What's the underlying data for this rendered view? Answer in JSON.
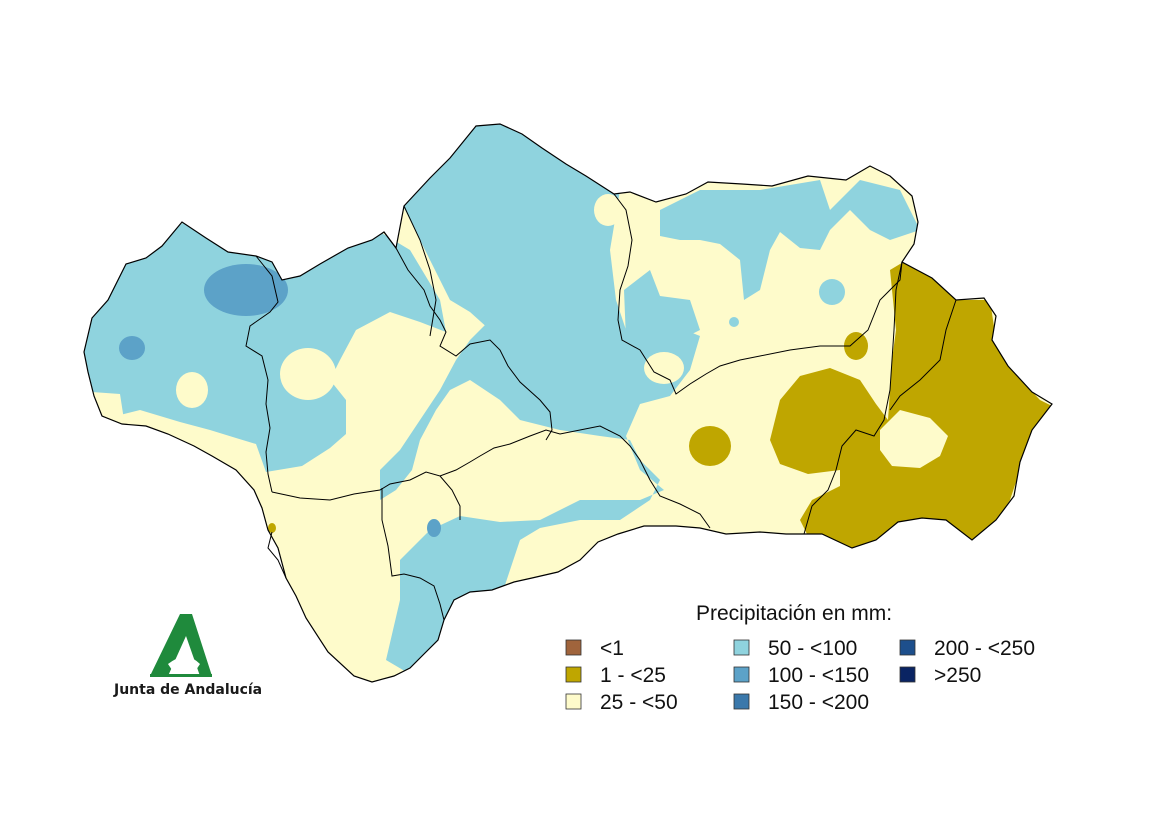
{
  "map": {
    "region": "Andalucía",
    "colors": {
      "background": "#ffffff",
      "border": "#000000"
    },
    "legend": {
      "title": "Precipitación en mm:",
      "items": [
        {
          "label": "<1",
          "color": "#a0643c"
        },
        {
          "label": "1 - <25",
          "color": "#bfa600"
        },
        {
          "label": "25 - <50",
          "color": "#fefbcb"
        },
        {
          "label": "50 - <100",
          "color": "#8fd3de"
        },
        {
          "label": "100 - <150",
          "color": "#5ca2c8"
        },
        {
          "label": "150 - <200",
          "color": "#3a78ab"
        },
        {
          "label": "200 - <250",
          "color": "#1d4f8c"
        },
        {
          "label": ">250",
          "color": "#0a2463"
        }
      ]
    }
  },
  "logo": {
    "text": "Junta de Andalucía",
    "icon": "junta-de-andalucia-logo-icon",
    "color": "#1f8a3c"
  }
}
